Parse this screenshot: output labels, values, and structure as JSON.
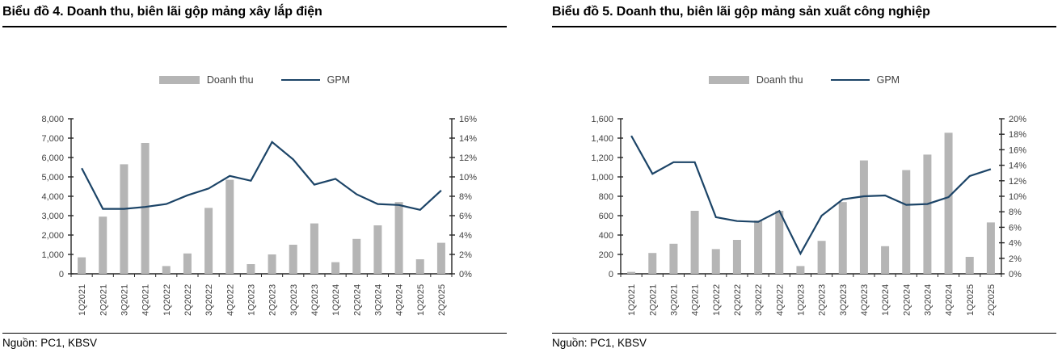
{
  "colors": {
    "bar": "#b5b5b5",
    "line": "#1c4467",
    "axis": "#262626",
    "tick_label": "#404040"
  },
  "chart_data": [
    {
      "type": "bar+line",
      "title": "Biểu đồ 4. Doanh thu, biên lãi gộp mảng xây lắp điện",
      "source": "Nguồn: PC1, KBSV",
      "legend_position": "top",
      "grid": false,
      "categories": [
        "1Q2021",
        "2Q2021",
        "3Q2021",
        "4Q2021",
        "1Q2022",
        "2Q2022",
        "3Q2022",
        "4Q2022",
        "1Q2023",
        "2Q2023",
        "3Q2023",
        "4Q2023",
        "1Q2024",
        "2Q2024",
        "3Q2024",
        "4Q2024",
        "1Q2025",
        "2Q2025"
      ],
      "series": [
        {
          "name": "Doanh thu",
          "type": "bar",
          "axis": "left",
          "color": "#b5b5b5",
          "values": [
            850,
            2950,
            5650,
            6750,
            400,
            1050,
            3400,
            4850,
            500,
            1000,
            1500,
            2600,
            600,
            1800,
            2500,
            3700,
            750,
            1600
          ]
        },
        {
          "name": "GPM",
          "type": "line",
          "axis": "right",
          "color": "#1c4467",
          "values": [
            10.9,
            6.7,
            6.7,
            6.9,
            7.2,
            8.1,
            8.8,
            10.1,
            9.6,
            13.6,
            11.8,
            9.2,
            9.8,
            8.2,
            7.2,
            7.1,
            6.6,
            8.6
          ]
        }
      ],
      "left_axis": {
        "min": 0,
        "max": 8000,
        "step": 1000,
        "format": "number"
      },
      "right_axis": {
        "min": 0,
        "max": 16,
        "step": 2,
        "format": "percent"
      }
    },
    {
      "type": "bar+line",
      "title": "Biểu đồ 5. Doanh thu, biên lãi gộp mảng sản xuất công nghiệp",
      "source": "Nguồn: PC1, KBSV",
      "legend_position": "top",
      "grid": false,
      "categories": [
        "1Q2021",
        "2Q2021",
        "3Q2021",
        "4Q2021",
        "1Q2022",
        "2Q2022",
        "3Q2022",
        "4Q2022",
        "1Q2023",
        "2Q2023",
        "3Q2023",
        "4Q2023",
        "1Q2024",
        "2Q2024",
        "3Q2024",
        "4Q2024",
        "1Q2025",
        "2Q2025"
      ],
      "series": [
        {
          "name": "Doanh thu",
          "type": "bar",
          "axis": "left",
          "color": "#b5b5b5",
          "values": [
            20,
            215,
            310,
            650,
            255,
            350,
            550,
            650,
            80,
            340,
            740,
            1170,
            285,
            1070,
            1230,
            1455,
            175,
            530
          ]
        },
        {
          "name": "GPM",
          "type": "line",
          "axis": "right",
          "color": "#1c4467",
          "values": [
            17.8,
            12.9,
            14.4,
            14.4,
            7.3,
            6.8,
            6.7,
            8.1,
            2.6,
            7.5,
            9.6,
            10.0,
            10.1,
            8.9,
            9.0,
            9.9,
            12.6,
            13.5
          ]
        }
      ],
      "left_axis": {
        "min": 0,
        "max": 1600,
        "step": 200,
        "format": "number"
      },
      "right_axis": {
        "min": 0,
        "max": 20,
        "step": 2,
        "format": "percent"
      }
    }
  ]
}
